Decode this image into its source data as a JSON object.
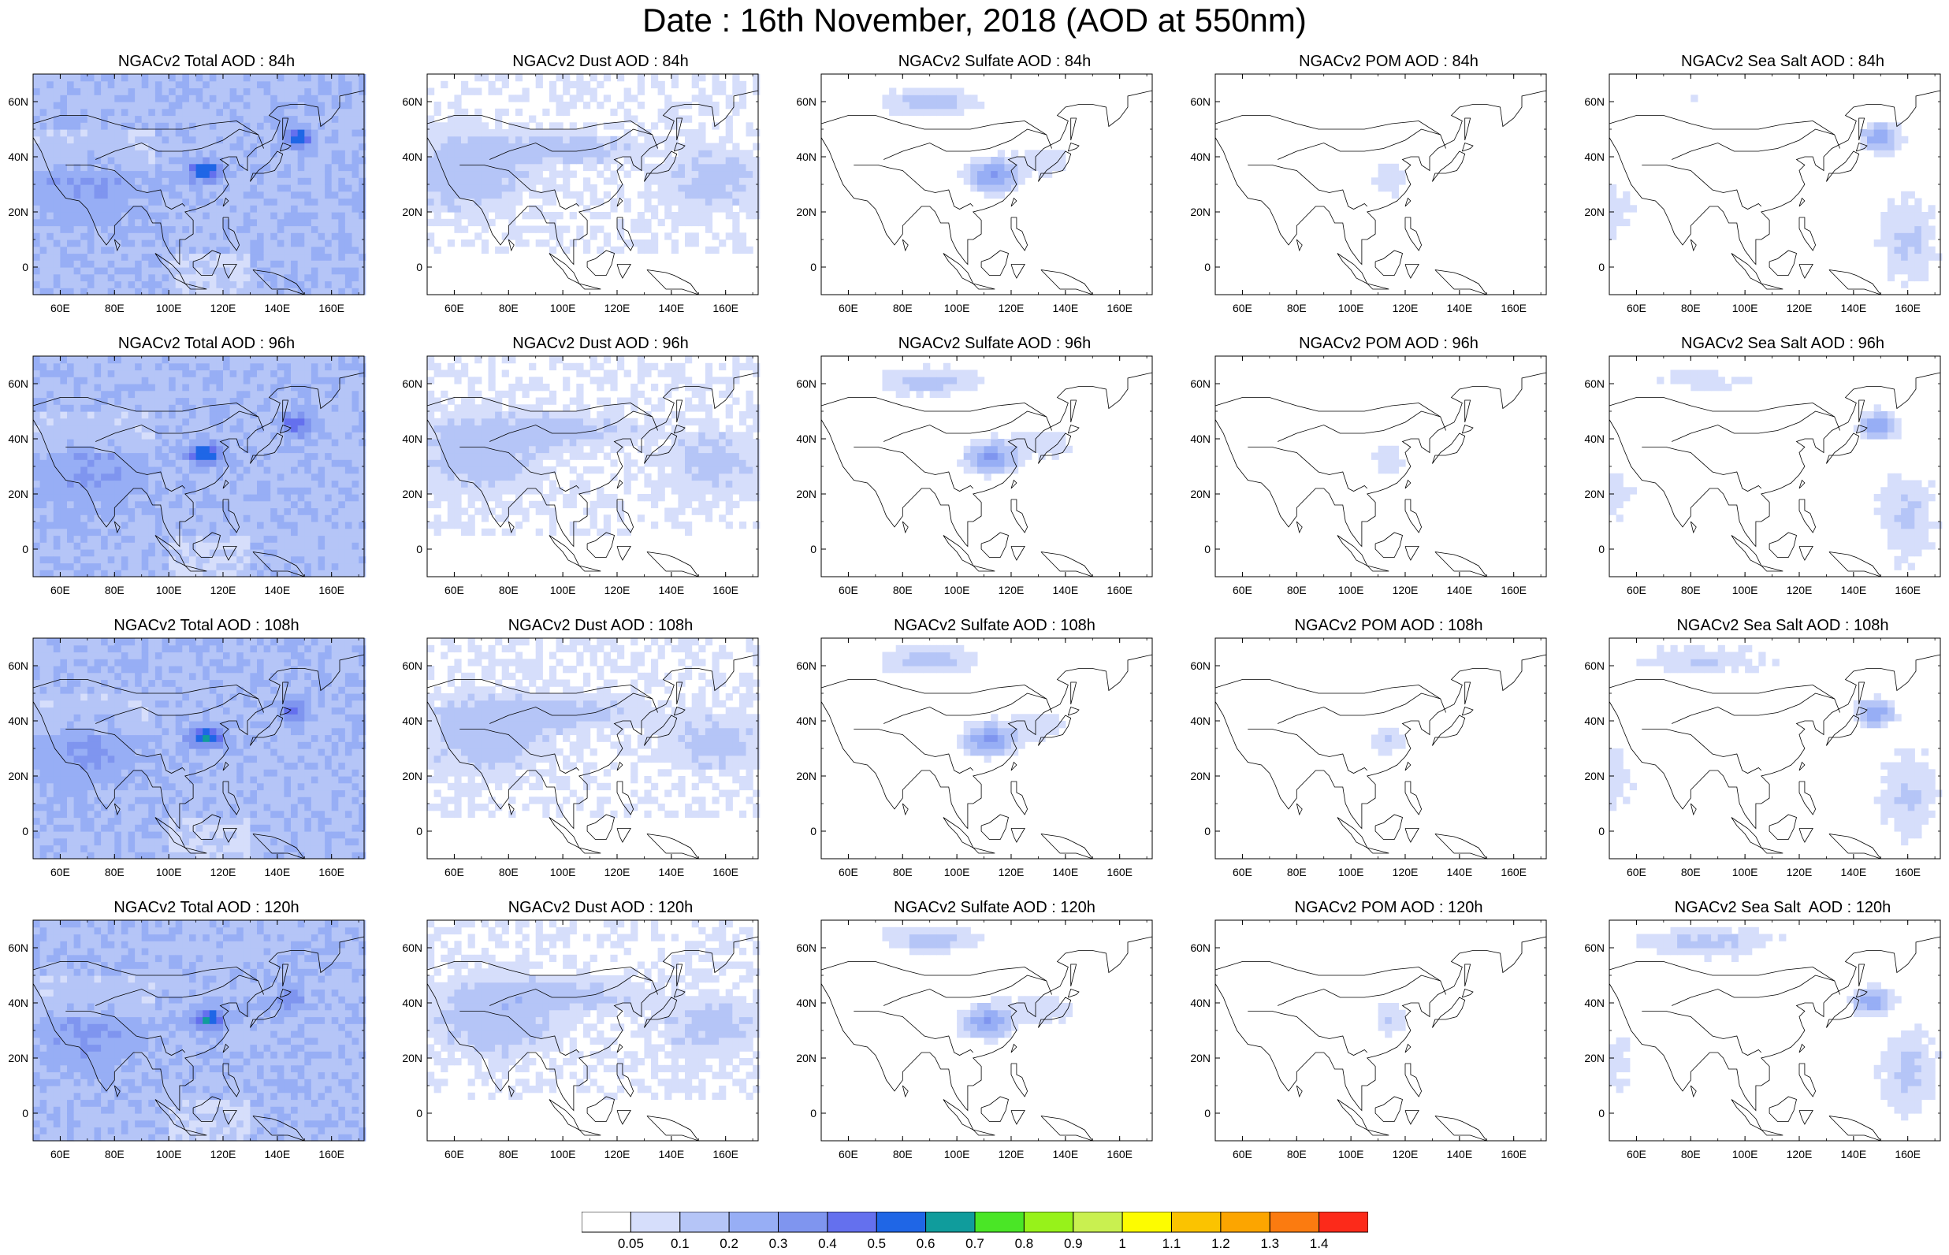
{
  "main_title": "Date : 16th November, 2018 (AOD at 550nm)",
  "axes": {
    "lat_ticks": [
      "60N",
      "40N",
      "20N",
      "0"
    ],
    "lon_ticks": [
      "60E",
      "80E",
      "100E",
      "120E",
      "140E",
      "160E"
    ]
  },
  "colors": {
    "palette": [
      "#ffffff",
      "#d6defb",
      "#b5c5f7",
      "#97aef5",
      "#7f95ef",
      "#6470ee",
      "#1f66e6",
      "#109c9c",
      "#4ae626",
      "#97f21a",
      "#c9f050",
      "#fdfc00",
      "#fbc300",
      "#fca500",
      "#fb7b10",
      "#fc2a1a"
    ]
  },
  "colorbar": {
    "labels": [
      "0.05",
      "0.1",
      "0.2",
      "0.3",
      "0.4",
      "0.5",
      "0.6",
      "0.7",
      "0.8",
      "0.9",
      "1",
      "1.1",
      "1.2",
      "1.3",
      "1.4"
    ]
  },
  "panels": [
    {
      "title": "NGACv2 Total AOD : 84h",
      "kind": "total",
      "hour": 84
    },
    {
      "title": "NGACv2 Dust AOD : 84h",
      "kind": "dust",
      "hour": 84
    },
    {
      "title": "NGACv2 Sulfate AOD : 84h",
      "kind": "sulfate",
      "hour": 84
    },
    {
      "title": "NGACv2 POM AOD : 84h",
      "kind": "pom",
      "hour": 84
    },
    {
      "title": "NGACv2 Sea Salt AOD : 84h",
      "kind": "seasalt",
      "hour": 84
    },
    {
      "title": "NGACv2 Total AOD : 96h",
      "kind": "total",
      "hour": 96
    },
    {
      "title": "NGACv2 Dust AOD : 96h",
      "kind": "dust",
      "hour": 96
    },
    {
      "title": "NGACv2 Sulfate AOD : 96h",
      "kind": "sulfate",
      "hour": 96
    },
    {
      "title": "NGACv2 POM AOD : 96h",
      "kind": "pom",
      "hour": 96
    },
    {
      "title": "NGACv2 Sea Salt AOD : 96h",
      "kind": "seasalt",
      "hour": 96
    },
    {
      "title": "NGACv2 Total AOD : 108h",
      "kind": "total",
      "hour": 108
    },
    {
      "title": "NGACv2 Dust AOD : 108h",
      "kind": "dust",
      "hour": 108
    },
    {
      "title": "NGACv2 Sulfate AOD : 108h",
      "kind": "sulfate",
      "hour": 108
    },
    {
      "title": "NGACv2 POM AOD : 108h",
      "kind": "pom",
      "hour": 108
    },
    {
      "title": "NGACv2 Sea Salt AOD : 108h",
      "kind": "seasalt",
      "hour": 108
    },
    {
      "title": "NGACv2 Total AOD : 120h",
      "kind": "total",
      "hour": 120
    },
    {
      "title": "NGACv2 Dust AOD : 120h",
      "kind": "dust",
      "hour": 120
    },
    {
      "title": "NGACv2 Sulfate AOD : 120h",
      "kind": "sulfate",
      "hour": 120
    },
    {
      "title": "NGACv2 POM AOD : 120h",
      "kind": "pom",
      "hour": 120
    },
    {
      "title": "NGACv2 Sea Salt  AOD : 120h",
      "kind": "seasalt",
      "hour": 120
    }
  ]
}
